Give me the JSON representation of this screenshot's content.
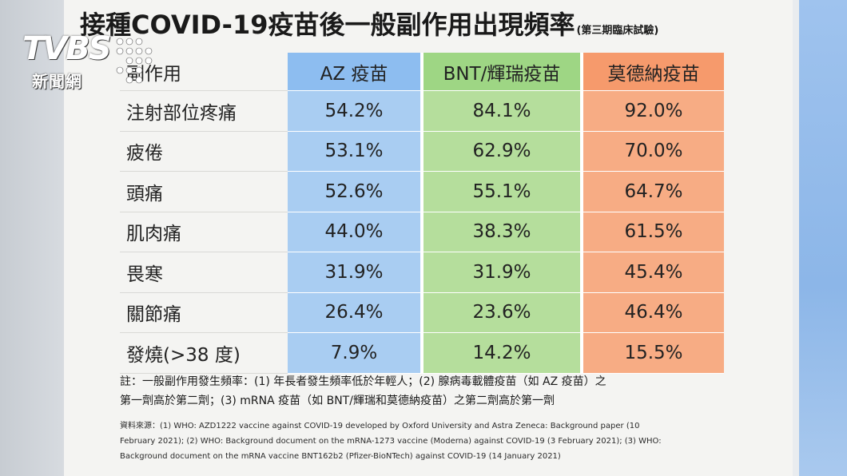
{
  "title": {
    "main": "接種COVID-19疫苗後一般副作用出現頻率",
    "sub": "(第三期臨床試驗)"
  },
  "table": {
    "headers": [
      "副作用",
      "AZ 疫苗",
      "BNT/輝瑞疫苗",
      "莫德納疫苗"
    ],
    "rows": [
      [
        "注射部位疼痛",
        "54.2%",
        "84.1%",
        "92.0%"
      ],
      [
        "疲倦",
        "53.1%",
        "62.9%",
        "70.0%"
      ],
      [
        "頭痛",
        "52.6%",
        "55.1%",
        "64.7%"
      ],
      [
        "肌肉痛",
        "44.0%",
        "38.3%",
        "61.5%"
      ],
      [
        "畏寒",
        "31.9%",
        "31.9%",
        "45.4%"
      ],
      [
        "關節痛",
        "26.4%",
        "23.6%",
        "46.4%"
      ],
      [
        "發燒(>38 度)",
        "7.9%",
        "14.2%",
        "15.5%"
      ]
    ]
  },
  "note": {
    "line1": "註：一般副作用發生頻率：(1) 年長者發生頻率低於年輕人；(2) 腺病毒載體疫苗（如 AZ 疫苗）之",
    "line2": "第一劑高於第二劑；(3) mRNA 疫苗（如 BNT/輝瑞和莫德納疫苗）之第二劑高於第一劑"
  },
  "source": {
    "line1": "資料來源：(1) WHO: AZD1222 vaccine against COVID-19 developed by Oxford University and Astra Zeneca: Background paper (10",
    "line2": "February 2021); (2) WHO: Background document on the mRNA-1273 vaccine (Moderna) against COVID-19 (3 February 2021); (3) WHO:",
    "line3": "Background document on the mRNA vaccine BNT162b2 (Pfizer-BioNTech) against COVID-19 (14 January 2021)"
  },
  "watermark": {
    "brand": "TVBS",
    "caption": "新聞網"
  },
  "colors": {
    "az": "#a9cdf2",
    "bnt": "#b5de9c",
    "moderna": "#f7ac84"
  }
}
